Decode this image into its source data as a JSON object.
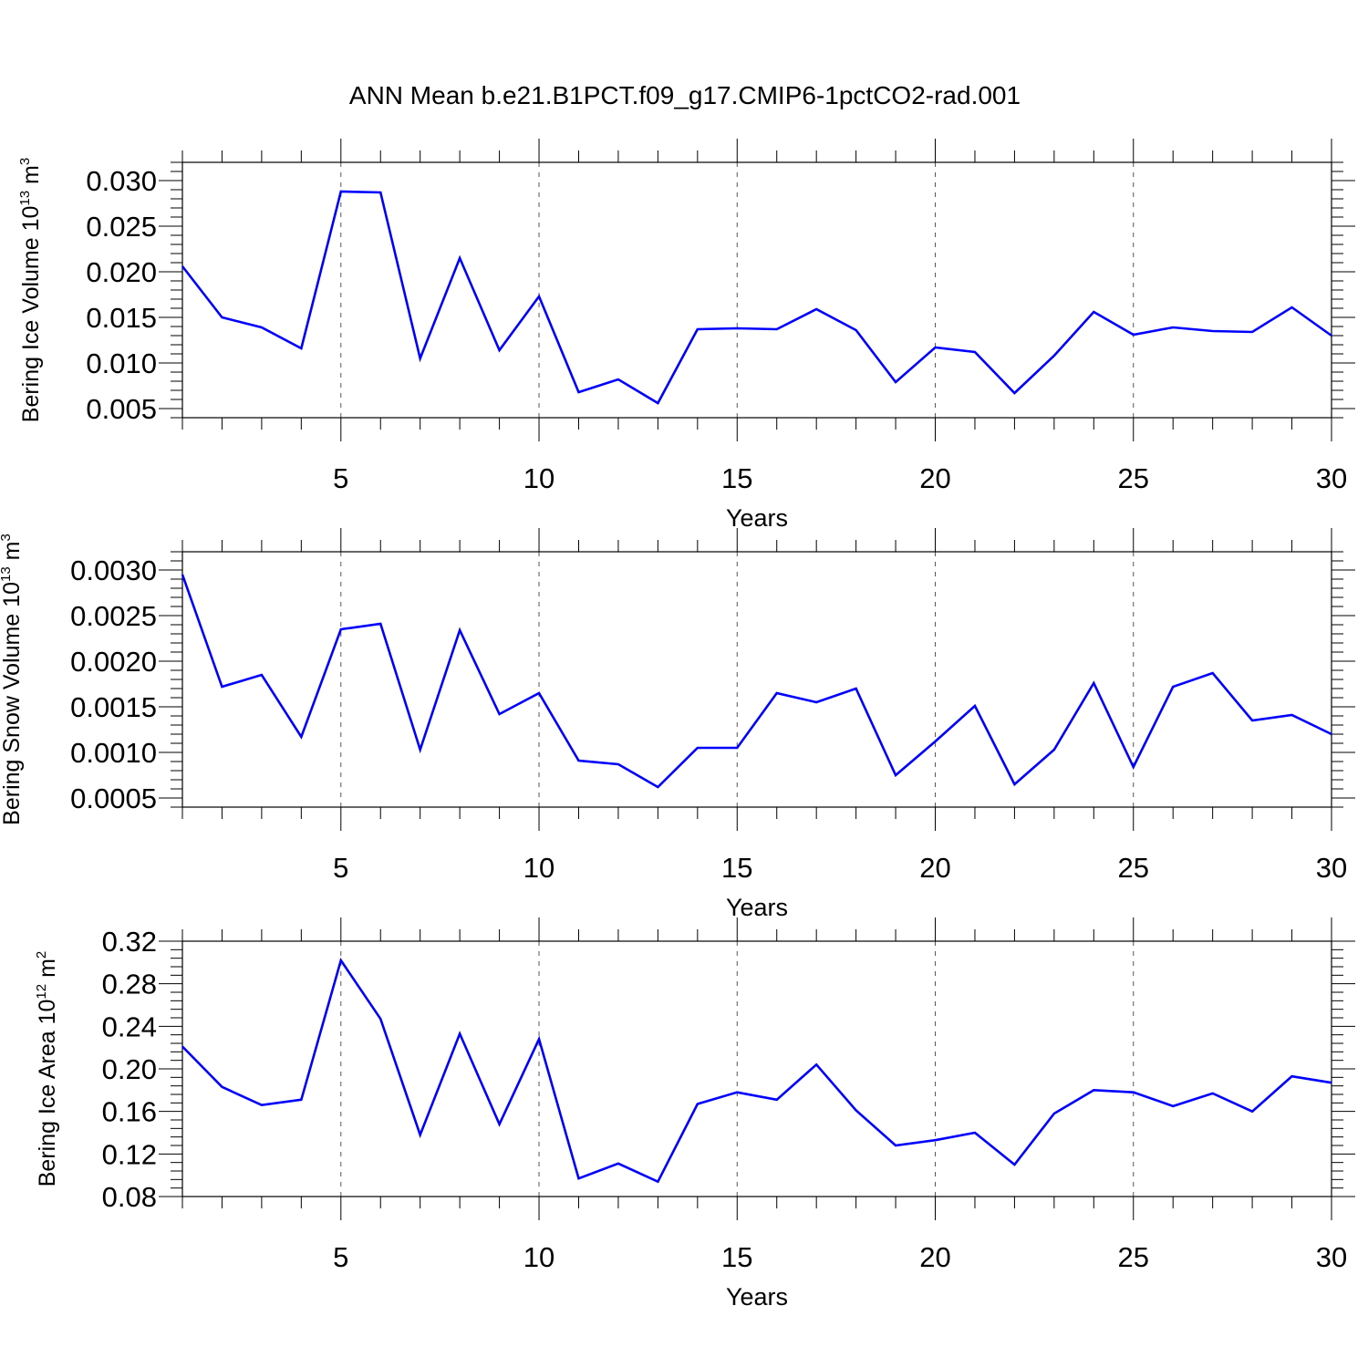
{
  "title": "ANN Mean b.e21.B1PCT.f09_g17.CMIP6-1pctCO2-rad.001",
  "colors": {
    "line": "#0000ff",
    "axis": "#000000",
    "grid": "#555555"
  },
  "chart_data": [
    {
      "type": "line",
      "ylabel": {
        "main": "Bering Ice Volume 10",
        "sup": "13",
        "unit": " m",
        "unit_sup": "3"
      },
      "xlabel": "Years",
      "xlim": [
        1,
        30
      ],
      "ylim": [
        0.004,
        0.032
      ],
      "yticks": [
        0.005,
        0.01,
        0.015,
        0.02,
        0.025,
        0.03
      ],
      "ytick_labels": [
        "0.005",
        "0.010",
        "0.015",
        "0.020",
        "0.025",
        "0.030"
      ],
      "xticks": [
        5,
        10,
        15,
        20,
        25,
        30
      ],
      "xtick_labels": [
        "5",
        "10",
        "15",
        "20",
        "25",
        "30"
      ],
      "grid_x": [
        5,
        10,
        15,
        20,
        25
      ],
      "x": [
        1,
        2,
        3,
        4,
        5,
        6,
        7,
        8,
        9,
        10,
        11,
        12,
        13,
        14,
        15,
        16,
        17,
        18,
        19,
        20,
        21,
        22,
        23,
        24,
        25,
        26,
        27,
        28,
        29,
        30
      ],
      "series": [
        {
          "values": [
            0.0206,
            0.015,
            0.0139,
            0.0116,
            0.0288,
            0.0287,
            0.0105,
            0.0215,
            0.0114,
            0.0173,
            0.0068,
            0.0082,
            0.0056,
            0.0137,
            0.0138,
            0.0137,
            0.0159,
            0.0136,
            0.0079,
            0.0117,
            0.0112,
            0.0067,
            0.0108,
            0.0156,
            0.0131,
            0.0139,
            0.0135,
            0.0134,
            0.0161,
            0.013
          ]
        }
      ]
    },
    {
      "type": "line",
      "ylabel": {
        "main": "Bering Snow Volume 10",
        "sup": "13",
        "unit": " m",
        "unit_sup": "3"
      },
      "xlabel": "Years",
      "xlim": [
        1,
        30
      ],
      "ylim": [
        0.0004,
        0.0032
      ],
      "yticks": [
        0.0005,
        0.001,
        0.0015,
        0.002,
        0.0025,
        0.003
      ],
      "ytick_labels": [
        "0.0005",
        "0.0010",
        "0.0015",
        "0.0020",
        "0.0025",
        "0.0030"
      ],
      "xticks": [
        5,
        10,
        15,
        20,
        25,
        30
      ],
      "xtick_labels": [
        "5",
        "10",
        "15",
        "20",
        "25",
        "30"
      ],
      "grid_x": [
        5,
        10,
        15,
        20,
        25
      ],
      "x": [
        1,
        2,
        3,
        4,
        5,
        6,
        7,
        8,
        9,
        10,
        11,
        12,
        13,
        14,
        15,
        16,
        17,
        18,
        19,
        20,
        21,
        22,
        23,
        24,
        25,
        26,
        27,
        28,
        29,
        30
      ],
      "series": [
        {
          "values": [
            0.00295,
            0.00172,
            0.00185,
            0.00117,
            0.00235,
            0.00241,
            0.00103,
            0.00234,
            0.00142,
            0.00165,
            0.00091,
            0.00087,
            0.00062,
            0.00105,
            0.00105,
            0.00165,
            0.00155,
            0.0017,
            0.00075,
            0.00112,
            0.00151,
            0.00065,
            0.00103,
            0.00176,
            0.00084,
            0.00172,
            0.00187,
            0.00135,
            0.00141,
            0.0012
          ]
        }
      ]
    },
    {
      "type": "line",
      "ylabel": {
        "main": "Bering Ice Area 10",
        "sup": "12",
        "unit": " m",
        "unit_sup": "2"
      },
      "xlabel": "Years",
      "xlim": [
        1,
        30
      ],
      "ylim": [
        0.08,
        0.32
      ],
      "yticks": [
        0.08,
        0.12,
        0.16,
        0.2,
        0.24,
        0.28,
        0.32
      ],
      "ytick_labels": [
        "0.08",
        "0.12",
        "0.16",
        "0.20",
        "0.24",
        "0.28",
        "0.32"
      ],
      "xticks": [
        5,
        10,
        15,
        20,
        25,
        30
      ],
      "xtick_labels": [
        "5",
        "10",
        "15",
        "20",
        "25",
        "30"
      ],
      "grid_x": [
        5,
        10,
        15,
        20,
        25
      ],
      "x": [
        1,
        2,
        3,
        4,
        5,
        6,
        7,
        8,
        9,
        10,
        11,
        12,
        13,
        14,
        15,
        16,
        17,
        18,
        19,
        20,
        21,
        22,
        23,
        24,
        25,
        26,
        27,
        28,
        29,
        30
      ],
      "series": [
        {
          "values": [
            0.221,
            0.183,
            0.166,
            0.171,
            0.302,
            0.247,
            0.138,
            0.233,
            0.148,
            0.228,
            0.097,
            0.111,
            0.094,
            0.167,
            0.178,
            0.171,
            0.204,
            0.161,
            0.128,
            0.133,
            0.14,
            0.11,
            0.158,
            0.18,
            0.178,
            0.165,
            0.177,
            0.16,
            0.193,
            0.187
          ]
        }
      ]
    }
  ]
}
